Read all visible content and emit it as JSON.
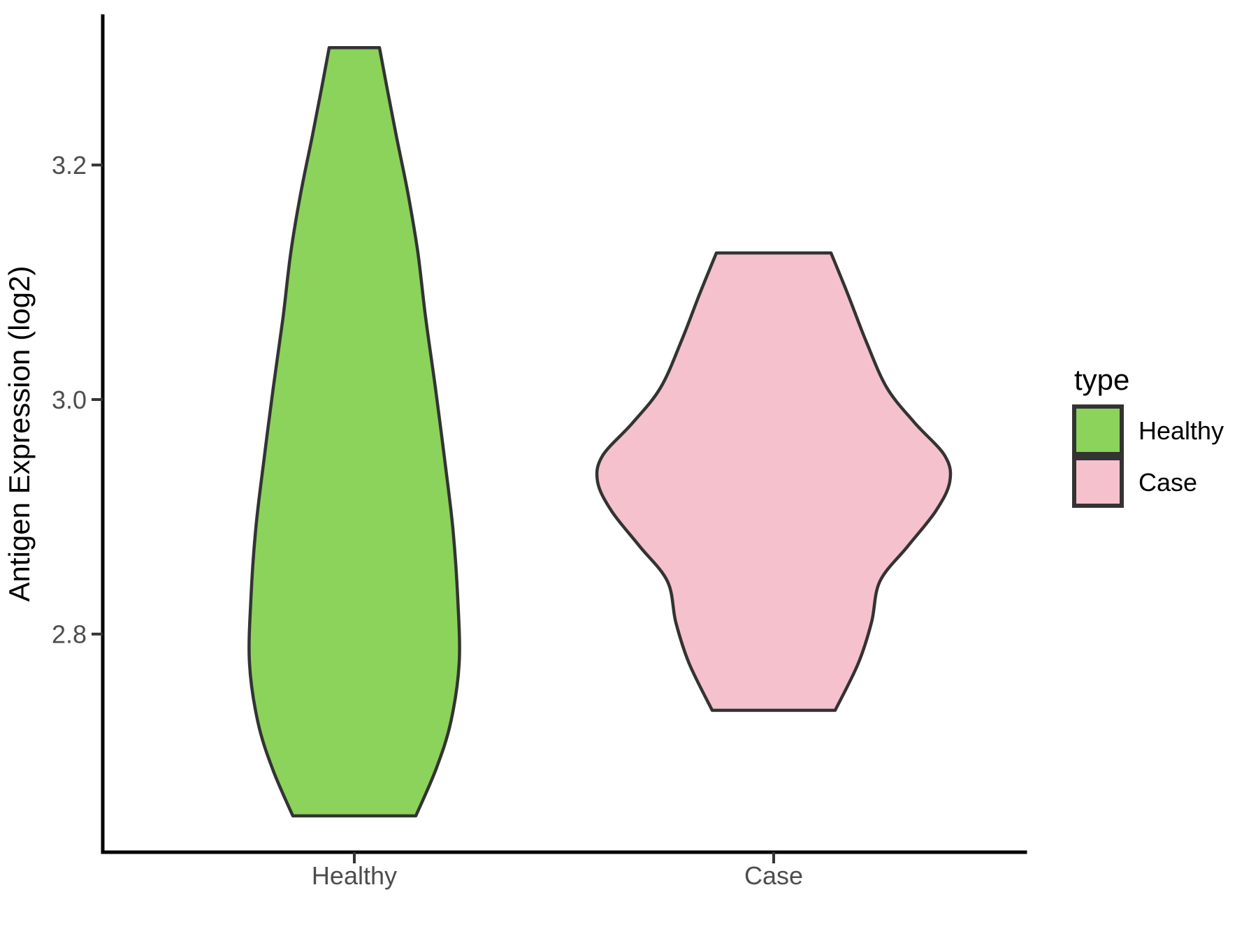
{
  "figure": {
    "background": "#ffffff",
    "axis_line_color": "#000000",
    "tick_color": "#333333",
    "tick_text_color": "#4d4d4d"
  },
  "chart_data": {
    "type": "violin",
    "title": "",
    "xlabel": "",
    "ylabel": "Antigen Expression (log2)",
    "categories": [
      "Healthy",
      "Case"
    ],
    "y_ticks": [
      "2.8",
      "3.0",
      "3.2"
    ],
    "y_axis_range": [
      2.614,
      3.327
    ],
    "grid": "off",
    "legend": {
      "title": "type",
      "position": "right",
      "entries": [
        {
          "label": "Healthy",
          "color": "#8bd35b"
        },
        {
          "label": "Case",
          "color": "#f5c1cd"
        }
      ]
    },
    "series": [
      {
        "name": "Healthy",
        "fill": "#8bd35b",
        "outline": "#333333",
        "y_range": [
          2.645,
          3.3
        ],
        "profile": [
          [
            3.3,
            36
          ],
          [
            3.265,
            47
          ],
          [
            3.225,
            60
          ],
          [
            3.175,
            77
          ],
          [
            3.125,
            91
          ],
          [
            3.07,
            102
          ],
          [
            3.01,
            116
          ],
          [
            2.95,
            129
          ],
          [
            2.89,
            141
          ],
          [
            2.83,
            148
          ],
          [
            2.775,
            150
          ],
          [
            2.725,
            138
          ],
          [
            2.685,
            117
          ],
          [
            2.645,
            88
          ]
        ]
      },
      {
        "name": "Case",
        "fill": "#f5c1cd",
        "outline": "#333333",
        "y_range": [
          2.735,
          3.125
        ],
        "profile": [
          [
            3.125,
            82
          ],
          [
            3.09,
            106
          ],
          [
            3.05,
            132
          ],
          [
            3.01,
            162
          ],
          [
            2.98,
            202
          ],
          [
            2.952,
            245
          ],
          [
            2.93,
            252
          ],
          [
            2.905,
            232
          ],
          [
            2.875,
            192
          ],
          [
            2.845,
            152
          ],
          [
            2.81,
            140
          ],
          [
            2.775,
            121
          ],
          [
            2.735,
            88
          ]
        ]
      }
    ]
  }
}
